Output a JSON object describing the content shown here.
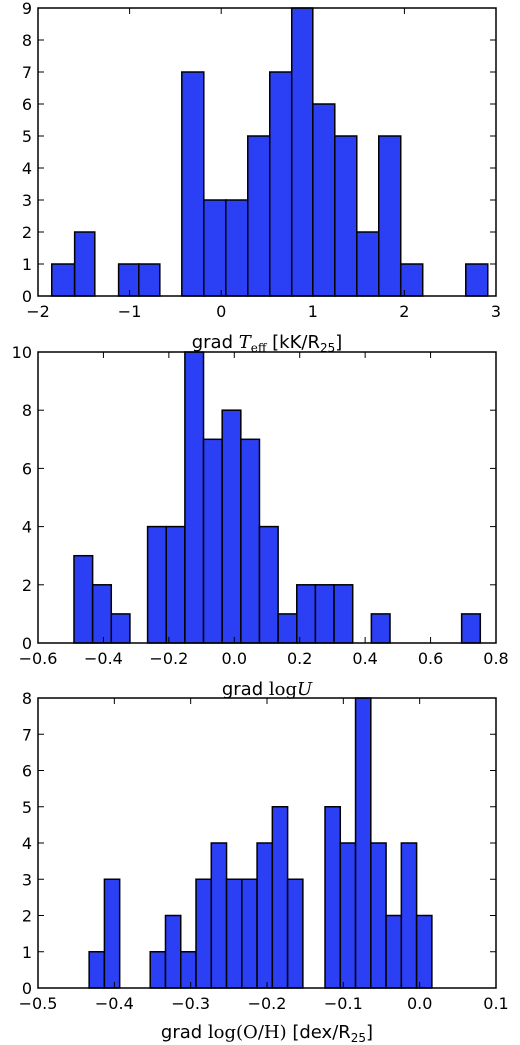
{
  "chart_data": [
    {
      "type": "bar",
      "title": "",
      "xlabel_parts": [
        {
          "text": "grad ",
          "style": "normal"
        },
        {
          "text": "T",
          "style": "math"
        },
        {
          "text": "eff",
          "style": "mathsub"
        },
        {
          "text": " [kK/R",
          "style": "normal"
        },
        {
          "text": "25",
          "style": "sub"
        },
        {
          "text": "]",
          "style": "normal"
        }
      ],
      "xlim": [
        -2,
        3
      ],
      "ylim": [
        0,
        9
      ],
      "xticks": [
        -2,
        -1,
        0,
        1,
        2,
        3
      ],
      "xtick_labels": [
        "−2",
        "−1",
        "0",
        "1",
        "2",
        "3"
      ],
      "yticks": [
        0,
        1,
        2,
        3,
        4,
        5,
        6,
        7,
        8,
        9
      ],
      "ytick_labels": [
        "0",
        "1",
        "2",
        "3",
        "4",
        "5",
        "6",
        "7",
        "8",
        "9"
      ],
      "bar_color": "#2b3ff5",
      "bins": [
        {
          "x0": -1.85,
          "x1": -1.6,
          "count": 1
        },
        {
          "x0": -1.6,
          "x1": -1.38,
          "count": 2
        },
        {
          "x0": -1.12,
          "x1": -0.9,
          "count": 1
        },
        {
          "x0": -0.9,
          "x1": -0.67,
          "count": 1
        },
        {
          "x0": -0.43,
          "x1": -0.19,
          "count": 7
        },
        {
          "x0": -0.19,
          "x1": 0.05,
          "count": 3
        },
        {
          "x0": 0.05,
          "x1": 0.29,
          "count": 3
        },
        {
          "x0": 0.29,
          "x1": 0.53,
          "count": 5
        },
        {
          "x0": 0.53,
          "x1": 0.77,
          "count": 7
        },
        {
          "x0": 0.77,
          "x1": 1.0,
          "count": 9
        },
        {
          "x0": 1.0,
          "x1": 1.24,
          "count": 6
        },
        {
          "x0": 1.24,
          "x1": 1.48,
          "count": 5
        },
        {
          "x0": 1.48,
          "x1": 1.72,
          "count": 2
        },
        {
          "x0": 1.72,
          "x1": 1.96,
          "count": 5
        },
        {
          "x0": 1.96,
          "x1": 2.2,
          "count": 1
        },
        {
          "x0": 2.67,
          "x1": 2.91,
          "count": 1
        }
      ]
    },
    {
      "type": "bar",
      "title": "",
      "xlabel_parts": [
        {
          "text": "grad ",
          "style": "normal"
        },
        {
          "text": "log",
          "style": "mathup"
        },
        {
          "text": "U",
          "style": "math"
        }
      ],
      "xlim": [
        -0.6,
        0.8
      ],
      "ylim": [
        0,
        10
      ],
      "xticks": [
        -0.6,
        -0.4,
        -0.2,
        0.0,
        0.2,
        0.4,
        0.6,
        0.8
      ],
      "xtick_labels": [
        "−0.6",
        "−0.4",
        "−0.2",
        "0.0",
        "0.2",
        "0.4",
        "0.6",
        "0.8"
      ],
      "yticks": [
        0,
        2,
        4,
        6,
        8,
        10
      ],
      "ytick_labels": [
        "0",
        "2",
        "4",
        "6",
        "8",
        "10"
      ],
      "bar_color": "#2b3ff5",
      "bins": [
        {
          "x0": -0.49,
          "x1": -0.433,
          "count": 3
        },
        {
          "x0": -0.433,
          "x1": -0.376,
          "count": 2
        },
        {
          "x0": -0.376,
          "x1": -0.319,
          "count": 1
        },
        {
          "x0": -0.265,
          "x1": -0.208,
          "count": 4
        },
        {
          "x0": -0.208,
          "x1": -0.151,
          "count": 4
        },
        {
          "x0": -0.151,
          "x1": -0.094,
          "count": 10
        },
        {
          "x0": -0.094,
          "x1": -0.037,
          "count": 7
        },
        {
          "x0": -0.037,
          "x1": 0.02,
          "count": 8
        },
        {
          "x0": 0.02,
          "x1": 0.077,
          "count": 7
        },
        {
          "x0": 0.077,
          "x1": 0.134,
          "count": 4
        },
        {
          "x0": 0.134,
          "x1": 0.191,
          "count": 1
        },
        {
          "x0": 0.191,
          "x1": 0.248,
          "count": 2
        },
        {
          "x0": 0.248,
          "x1": 0.305,
          "count": 2
        },
        {
          "x0": 0.305,
          "x1": 0.362,
          "count": 2
        },
        {
          "x0": 0.419,
          "x1": 0.476,
          "count": 1
        },
        {
          "x0": 0.695,
          "x1": 0.752,
          "count": 1
        }
      ]
    },
    {
      "type": "bar",
      "title": "",
      "xlabel_parts": [
        {
          "text": "grad ",
          "style": "normal"
        },
        {
          "text": "log(O/H)",
          "style": "mathup"
        },
        {
          "text": " [dex/R",
          "style": "normal"
        },
        {
          "text": "25",
          "style": "sub"
        },
        {
          "text": "]",
          "style": "normal"
        }
      ],
      "xlim": [
        -0.5,
        0.1
      ],
      "ylim": [
        0,
        8
      ],
      "xticks": [
        -0.5,
        -0.4,
        -0.3,
        -0.2,
        -0.1,
        0.0,
        0.1
      ],
      "xtick_labels": [
        "−0.5",
        "−0.4",
        "−0.3",
        "−0.2",
        "−0.1",
        "0.0",
        "0.1"
      ],
      "yticks": [
        0,
        1,
        2,
        3,
        4,
        5,
        6,
        7,
        8
      ],
      "ytick_labels": [
        "0",
        "1",
        "2",
        "3",
        "4",
        "5",
        "6",
        "7",
        "8"
      ],
      "bar_color": "#2b3ff5",
      "bins": [
        {
          "x0": -0.433,
          "x1": -0.413,
          "count": 1
        },
        {
          "x0": -0.413,
          "x1": -0.393,
          "count": 3
        },
        {
          "x0": -0.353,
          "x1": -0.333,
          "count": 1
        },
        {
          "x0": -0.333,
          "x1": -0.313,
          "count": 2
        },
        {
          "x0": -0.313,
          "x1": -0.293,
          "count": 1
        },
        {
          "x0": -0.293,
          "x1": -0.273,
          "count": 3
        },
        {
          "x0": -0.273,
          "x1": -0.253,
          "count": 4
        },
        {
          "x0": -0.253,
          "x1": -0.233,
          "count": 3
        },
        {
          "x0": -0.233,
          "x1": -0.213,
          "count": 3
        },
        {
          "x0": -0.213,
          "x1": -0.193,
          "count": 4
        },
        {
          "x0": -0.193,
          "x1": -0.173,
          "count": 5
        },
        {
          "x0": -0.173,
          "x1": -0.153,
          "count": 3
        },
        {
          "x0": -0.124,
          "x1": -0.104,
          "count": 5
        },
        {
          "x0": -0.104,
          "x1": -0.084,
          "count": 4
        },
        {
          "x0": -0.084,
          "x1": -0.064,
          "count": 8
        },
        {
          "x0": -0.064,
          "x1": -0.044,
          "count": 4
        },
        {
          "x0": -0.044,
          "x1": -0.024,
          "count": 2
        },
        {
          "x0": -0.024,
          "x1": -0.004,
          "count": 4
        },
        {
          "x0": -0.004,
          "x1": 0.016,
          "count": 2
        }
      ]
    }
  ]
}
